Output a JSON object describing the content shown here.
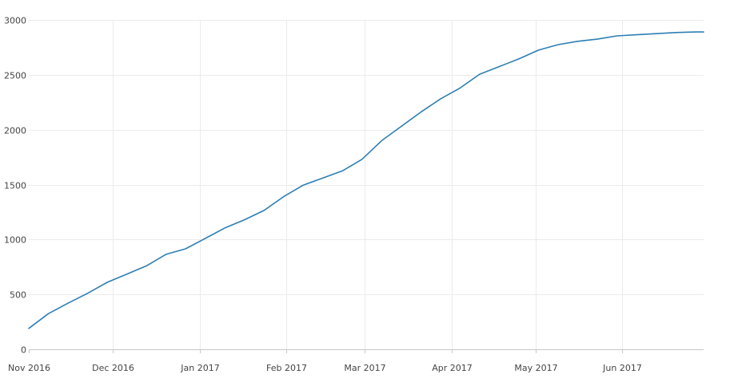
{
  "chart_data": {
    "type": "line",
    "title": "",
    "xlabel": "",
    "ylabel": "",
    "ylim": [
      0,
      3000
    ],
    "xlim": [
      "2016-11-01",
      "2017-06-30"
    ],
    "grid": true,
    "legend": "none",
    "y_ticks": [
      {
        "value": 0,
        "label": "0"
      },
      {
        "value": 500,
        "label": "500"
      },
      {
        "value": 1000,
        "label": "1000"
      },
      {
        "value": 1500,
        "label": "1500"
      },
      {
        "value": 2000,
        "label": "2000"
      },
      {
        "value": 2500,
        "label": "2500"
      },
      {
        "value": 3000,
        "label": "3000"
      }
    ],
    "x_ticks": [
      {
        "date": "2016-11-01",
        "label": "Nov 2016"
      },
      {
        "date": "2016-12-01",
        "label": "Dec 2016"
      },
      {
        "date": "2017-01-01",
        "label": "Jan 2017"
      },
      {
        "date": "2017-02-01",
        "label": "Feb 2017"
      },
      {
        "date": "2017-03-01",
        "label": "Mar 2017"
      },
      {
        "date": "2017-04-01",
        "label": "Apr 2017"
      },
      {
        "date": "2017-05-01",
        "label": "May 2017"
      },
      {
        "date": "2017-06-01",
        "label": "Jun 2017"
      }
    ],
    "series": [
      {
        "color": "#2e7eb5",
        "points": [
          {
            "date": "2016-11-01",
            "value": 190
          },
          {
            "date": "2016-11-08",
            "value": 325
          },
          {
            "date": "2016-11-15",
            "value": 420
          },
          {
            "date": "2016-11-22",
            "value": 510
          },
          {
            "date": "2016-11-29",
            "value": 610
          },
          {
            "date": "2016-12-06",
            "value": 685
          },
          {
            "date": "2016-12-13",
            "value": 760
          },
          {
            "date": "2016-12-20",
            "value": 865
          },
          {
            "date": "2016-12-27",
            "value": 915
          },
          {
            "date": "2017-01-03",
            "value": 1010
          },
          {
            "date": "2017-01-10",
            "value": 1105
          },
          {
            "date": "2017-01-17",
            "value": 1180
          },
          {
            "date": "2017-01-24",
            "value": 1265
          },
          {
            "date": "2017-01-31",
            "value": 1390
          },
          {
            "date": "2017-02-07",
            "value": 1495
          },
          {
            "date": "2017-02-14",
            "value": 1560
          },
          {
            "date": "2017-02-21",
            "value": 1625
          },
          {
            "date": "2017-02-28",
            "value": 1730
          },
          {
            "date": "2017-03-07",
            "value": 1900
          },
          {
            "date": "2017-03-14",
            "value": 2030
          },
          {
            "date": "2017-03-21",
            "value": 2160
          },
          {
            "date": "2017-03-28",
            "value": 2280
          },
          {
            "date": "2017-04-04",
            "value": 2380
          },
          {
            "date": "2017-04-11",
            "value": 2505
          },
          {
            "date": "2017-04-18",
            "value": 2575
          },
          {
            "date": "2017-04-25",
            "value": 2645
          },
          {
            "date": "2017-05-02",
            "value": 2725
          },
          {
            "date": "2017-05-09",
            "value": 2775
          },
          {
            "date": "2017-05-16",
            "value": 2805
          },
          {
            "date": "2017-05-23",
            "value": 2825
          },
          {
            "date": "2017-05-30",
            "value": 2855
          },
          {
            "date": "2017-06-06",
            "value": 2865
          },
          {
            "date": "2017-06-13",
            "value": 2875
          },
          {
            "date": "2017-06-20",
            "value": 2885
          },
          {
            "date": "2017-06-27",
            "value": 2890
          },
          {
            "date": "2017-06-30",
            "value": 2890
          }
        ]
      }
    ]
  }
}
